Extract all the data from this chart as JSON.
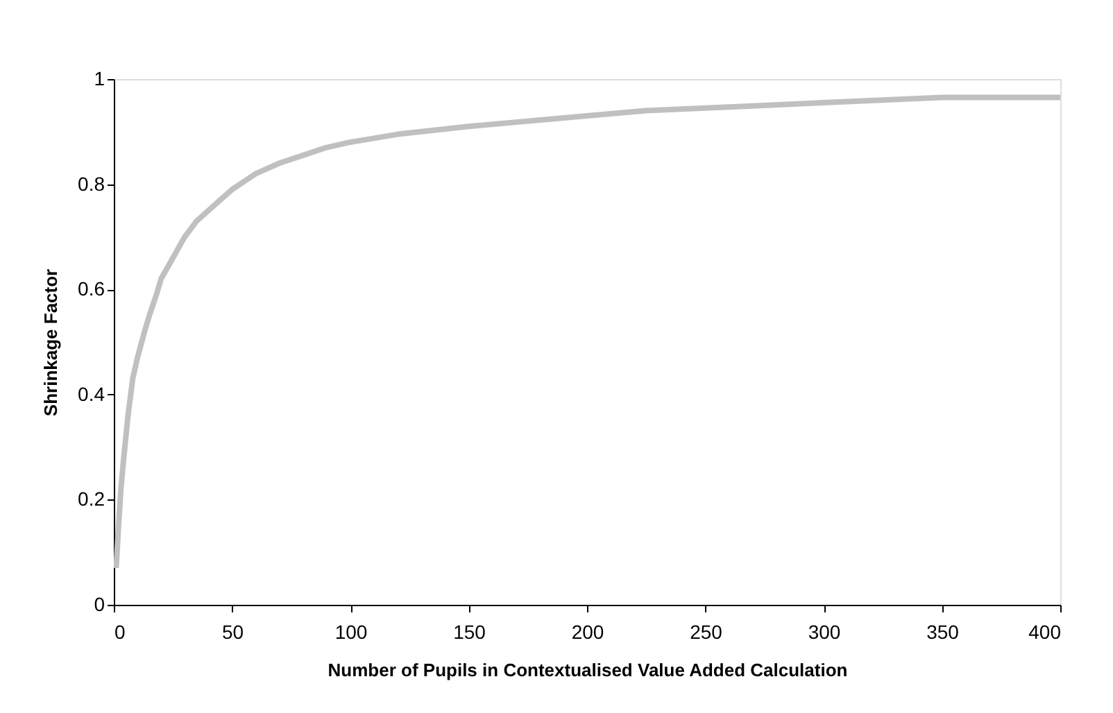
{
  "chart_data": {
    "type": "line",
    "xlabel": "Number of Pupils in Contextualised Value Added Calculation",
    "ylabel": "Shrinkage Factor",
    "x": [
      1,
      2,
      3,
      4,
      6,
      8,
      10,
      13,
      15,
      18,
      20,
      25,
      30,
      35,
      40,
      45,
      50,
      60,
      70,
      80,
      90,
      100,
      120,
      140,
      150,
      175,
      200,
      225,
      250,
      275,
      300,
      325,
      350,
      375,
      400
    ],
    "series": [
      {
        "color": "#c0c0c0",
        "values": [
          0.07,
          0.15,
          0.22,
          0.27,
          0.36,
          0.43,
          0.47,
          0.52,
          0.55,
          0.59,
          0.62,
          0.66,
          0.7,
          0.73,
          0.75,
          0.77,
          0.79,
          0.82,
          0.84,
          0.855,
          0.87,
          0.88,
          0.895,
          0.905,
          0.91,
          0.92,
          0.93,
          0.94,
          0.945,
          0.95,
          0.955,
          0.96,
          0.965,
          0.965,
          0.965
        ]
      }
    ],
    "xlim": [
      0,
      400
    ],
    "xticks": [
      0,
      50,
      100,
      150,
      200,
      250,
      300,
      350,
      400
    ],
    "ylim": [
      0,
      1
    ],
    "yticks": [
      0,
      0.2,
      0.4,
      0.6,
      0.8,
      1
    ],
    "grid": false,
    "legend": false,
    "marker": "none",
    "line_style": "solid"
  }
}
